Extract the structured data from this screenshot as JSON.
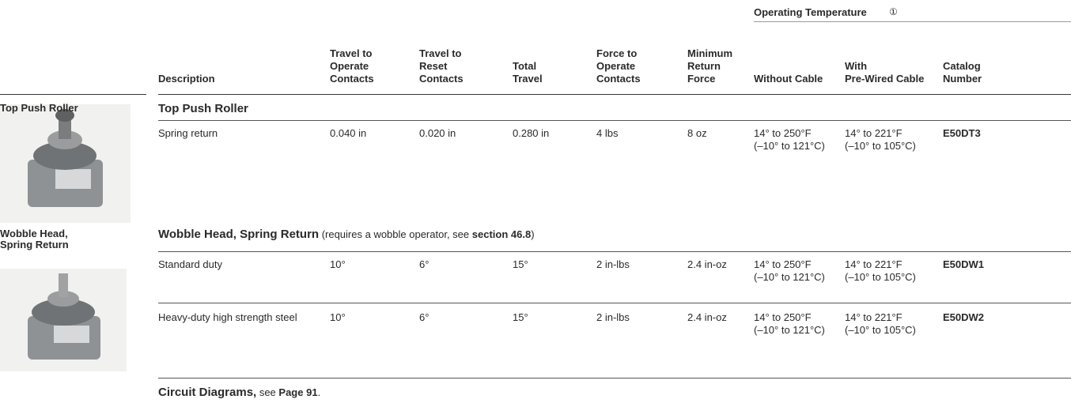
{
  "table": {
    "header": {
      "group": {
        "title": "Operating Temperature",
        "note": "①"
      },
      "columns": [
        [
          "Description"
        ],
        [
          "Travel to",
          "Operate",
          "Contacts"
        ],
        [
          "Travel to",
          "Reset",
          "Contacts"
        ],
        [
          "Total",
          "Travel"
        ],
        [
          "Force to",
          "Operate",
          "Contacts"
        ],
        [
          "Minimum",
          "Return",
          "Force"
        ],
        [
          "Without Cable"
        ],
        [
          "With",
          "Pre-Wired Cable"
        ],
        [
          "Catalog",
          "Number"
        ]
      ]
    },
    "sections": [
      {
        "side_label": [
          "Top Push Roller"
        ],
        "title": [
          "Top Push Roller"
        ],
        "rows": [
          [
            [
              "Spring return"
            ],
            [
              "0.040 in"
            ],
            [
              "0.020 in"
            ],
            [
              "0.280 in"
            ],
            [
              "4 lbs"
            ],
            [
              "8 oz"
            ],
            [
              "14° to 250°F",
              "(–10° to 121°C)"
            ],
            [
              "14° to 221°F",
              "(–10° to 105°C)"
            ],
            [
              "E50DT3"
            ]
          ]
        ]
      },
      {
        "side_label": [
          "Wobble Head,",
          "Spring Return"
        ],
        "title": [
          "Wobble Head, Spring Return",
          " (requires a wobble operator, see ",
          "section 46.8",
          ")"
        ],
        "rows": [
          [
            [
              "Standard duty"
            ],
            [
              "10°"
            ],
            [
              "6°"
            ],
            [
              "15°"
            ],
            [
              "2 in-lbs"
            ],
            [
              "2.4 in-oz"
            ],
            [
              "14° to 250°F",
              "(–10° to 121°C)"
            ],
            [
              "14° to 221°F",
              "(–10° to 105°C)"
            ],
            [
              "E50DW1"
            ]
          ],
          [
            [
              "Heavy-duty high strength steel"
            ],
            [
              "10°"
            ],
            [
              "6°"
            ],
            [
              "15°"
            ],
            [
              "2 in-lbs"
            ],
            [
              "2.4 in-oz"
            ],
            [
              "14° to 250°F",
              "(–10° to 121°C)"
            ],
            [
              "14° to 221°F",
              "(–10° to 105°C)"
            ],
            [
              "E50DW2"
            ]
          ]
        ]
      }
    ],
    "footer": [
      "Circuit Diagrams,",
      " see ",
      "Page 91",
      "."
    ]
  }
}
